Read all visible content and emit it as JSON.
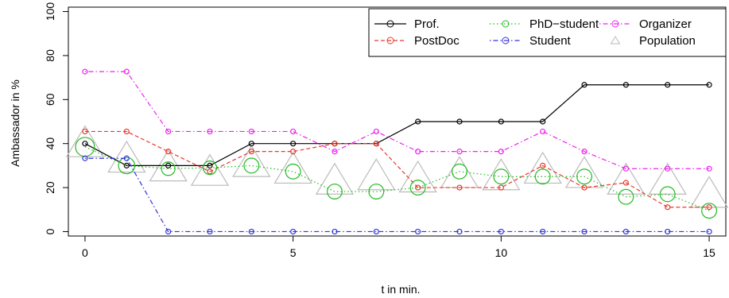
{
  "chart_data": {
    "type": "line",
    "xlabel": "t in min.",
    "ylabel": "Ambassador  in %",
    "xlim": [
      -0.4,
      15.4
    ],
    "ylim": [
      -2,
      102
    ],
    "xticks": [
      0,
      5,
      10,
      15
    ],
    "yticks": [
      0,
      20,
      40,
      60,
      80,
      100
    ],
    "grid": false,
    "legend_position": "top-right",
    "x": [
      0,
      1,
      2,
      3,
      4,
      5,
      6,
      7,
      8,
      9,
      10,
      11,
      12,
      13,
      14,
      15
    ],
    "series": [
      {
        "name": "Prof.",
        "color": "#000000",
        "line_style": "solid",
        "marker": "circle",
        "values": [
          40,
          30,
          30,
          30,
          40,
          40,
          40,
          40,
          50,
          50,
          50,
          50,
          66.7,
          66.7,
          66.7,
          66.7
        ]
      },
      {
        "name": "PostDoc",
        "color": "#e8392f",
        "line_style": "dashed",
        "marker": "circle",
        "values": [
          45.5,
          45.5,
          36.4,
          27.3,
          36.4,
          36.4,
          40,
          40,
          20,
          20,
          20,
          30,
          20,
          22.2,
          11.1,
          11.1
        ]
      },
      {
        "name": "PhD−student",
        "color": "#22bb22",
        "line_style": "dotted",
        "marker": "circle",
        "values": [
          38.5,
          30,
          28.6,
          29,
          30,
          27.3,
          18.2,
          18.2,
          20,
          27.3,
          25,
          25,
          25,
          15.8,
          17,
          9.5
        ],
        "marker_size_by_value": [
          14,
          12,
          10,
          10,
          11,
          11,
          11,
          11,
          11,
          11,
          11,
          11,
          11,
          11,
          11,
          11
        ]
      },
      {
        "name": "Student",
        "color": "#3333dd",
        "line_style": "dashdot",
        "marker": "circle",
        "values": [
          33.3,
          33.3,
          0,
          0,
          0,
          0,
          0,
          0,
          0,
          0,
          0,
          0,
          0,
          0,
          0,
          0
        ]
      },
      {
        "name": "Organizer",
        "color": "#ee22ee",
        "line_style": "dashdot",
        "marker": "circle",
        "values": [
          72.7,
          72.7,
          45.5,
          45.5,
          45.5,
          45.5,
          36.4,
          45.5,
          36.4,
          36.4,
          36.4,
          45.5,
          36.4,
          28.6,
          28.6,
          28.6
        ]
      },
      {
        "name": "Population",
        "color": "#bbbbbb",
        "line_style": "none",
        "marker": "triangle",
        "values": [
          40,
          33,
          29,
          27,
          31,
          28,
          23,
          25,
          24,
          26,
          25,
          28,
          26,
          23,
          23,
          17
        ]
      }
    ]
  }
}
